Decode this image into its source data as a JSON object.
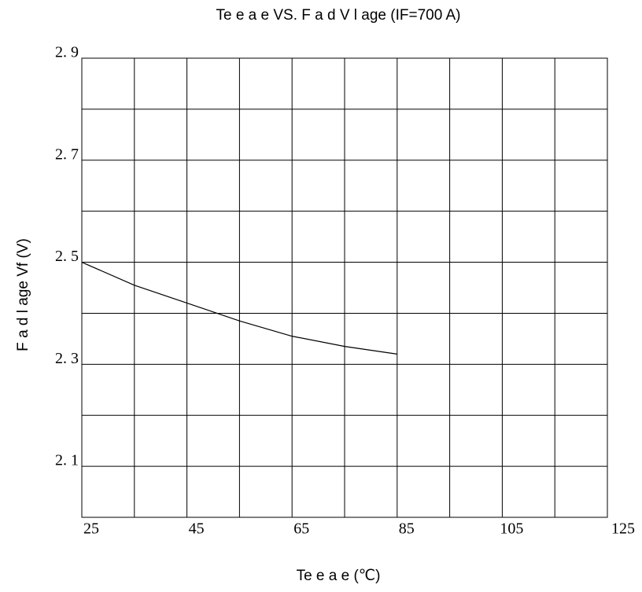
{
  "chart_data": {
    "type": "line",
    "title": "Te    e a    e VS. F    a d V   l age (IF=700   A)",
    "x_label": "Te    e a    e (℃)",
    "y_label": "F    a d    l age Vf (V)",
    "series": [
      {
        "name": "Vf",
        "color": "#000000",
        "x": [
          25,
          35,
          45,
          55,
          65,
          75,
          85
        ],
        "values": [
          2.5,
          2.455,
          2.42,
          2.385,
          2.355,
          2.335,
          2.32
        ]
      }
    ],
    "xlim": [
      25,
      125
    ],
    "xticks": [
      25,
      45,
      65,
      85,
      105,
      125
    ],
    "xminor": [
      35,
      55,
      75,
      95,
      115
    ],
    "ylim": [
      2.0,
      2.9
    ],
    "yticks": [
      {
        "value": 2.1,
        "label": "2. 1"
      },
      {
        "value": 2.3,
        "label": "2. 3"
      },
      {
        "value": 2.5,
        "label": "2. 5"
      },
      {
        "value": 2.7,
        "label": "2. 7"
      },
      {
        "value": 2.9,
        "label": "2. 9"
      }
    ],
    "yminor": [
      2.0,
      2.2,
      2.4,
      2.6,
      2.8
    ],
    "grid": true
  }
}
